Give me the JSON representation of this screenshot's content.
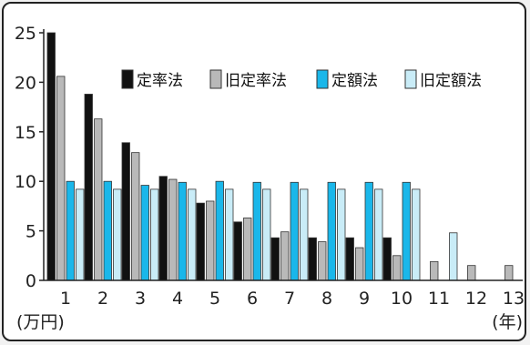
{
  "chart_data": {
    "type": "bar",
    "categories": [
      "1",
      "2",
      "3",
      "4",
      "5",
      "6",
      "7",
      "8",
      "9",
      "10",
      "11",
      "12",
      "13"
    ],
    "series": [
      {
        "name": "定率法",
        "color": "#111111",
        "values": [
          25.0,
          18.8,
          13.9,
          10.5,
          7.8,
          5.9,
          4.3,
          4.3,
          4.3,
          4.3,
          null,
          null,
          null
        ]
      },
      {
        "name": "旧定率法",
        "color": "#b9b9b9",
        "values": [
          20.6,
          16.3,
          12.9,
          10.2,
          8.0,
          6.3,
          4.9,
          3.9,
          3.3,
          2.5,
          1.9,
          1.5,
          1.5
        ]
      },
      {
        "name": "定額法",
        "color": "#1ab7ea",
        "values": [
          10.0,
          10.0,
          9.6,
          9.9,
          10.0,
          9.9,
          9.9,
          9.9,
          9.9,
          9.9,
          null,
          null,
          null
        ]
      },
      {
        "name": "旧定額法",
        "color": "#c9ecf7",
        "values": [
          9.2,
          9.2,
          9.2,
          9.2,
          9.2,
          9.2,
          9.2,
          9.2,
          9.2,
          9.2,
          4.8,
          null,
          null
        ]
      }
    ],
    "ylim": [
      0,
      25
    ],
    "yticks": [
      0,
      5,
      10,
      15,
      20,
      25
    ],
    "ylabel": "(万円)",
    "xlabel": "(年)",
    "legend_position": "top-right",
    "grid": false
  }
}
